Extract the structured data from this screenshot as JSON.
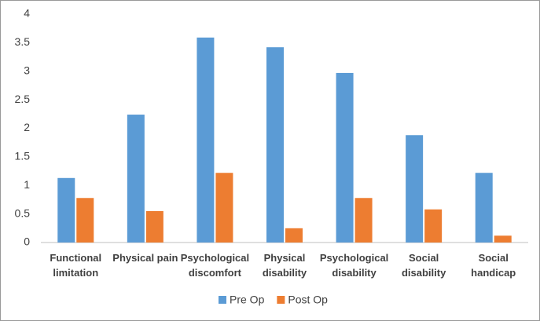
{
  "chart_data": {
    "type": "bar",
    "categories": [
      "Functional\nlimitation",
      "Physical pain",
      "Psychological\ndiscomfort",
      "Physical\ndisability",
      "Psychological\ndisability",
      "Social\ndisability",
      "Social\nhandicap"
    ],
    "series": [
      {
        "name": "Pre Op",
        "color": "#5b9bd5",
        "values": [
          1.13,
          2.24,
          3.59,
          3.42,
          2.97,
          1.88,
          1.22
        ]
      },
      {
        "name": "Post Op",
        "color": "#ed7d31",
        "values": [
          0.78,
          0.55,
          1.22,
          0.25,
          0.78,
          0.58,
          0.12
        ]
      }
    ],
    "ylim": [
      0,
      4
    ],
    "yticks": [
      0,
      0.5,
      1,
      1.5,
      2,
      2.5,
      3,
      3.5,
      4
    ],
    "grid": false,
    "legend": "bottom"
  }
}
